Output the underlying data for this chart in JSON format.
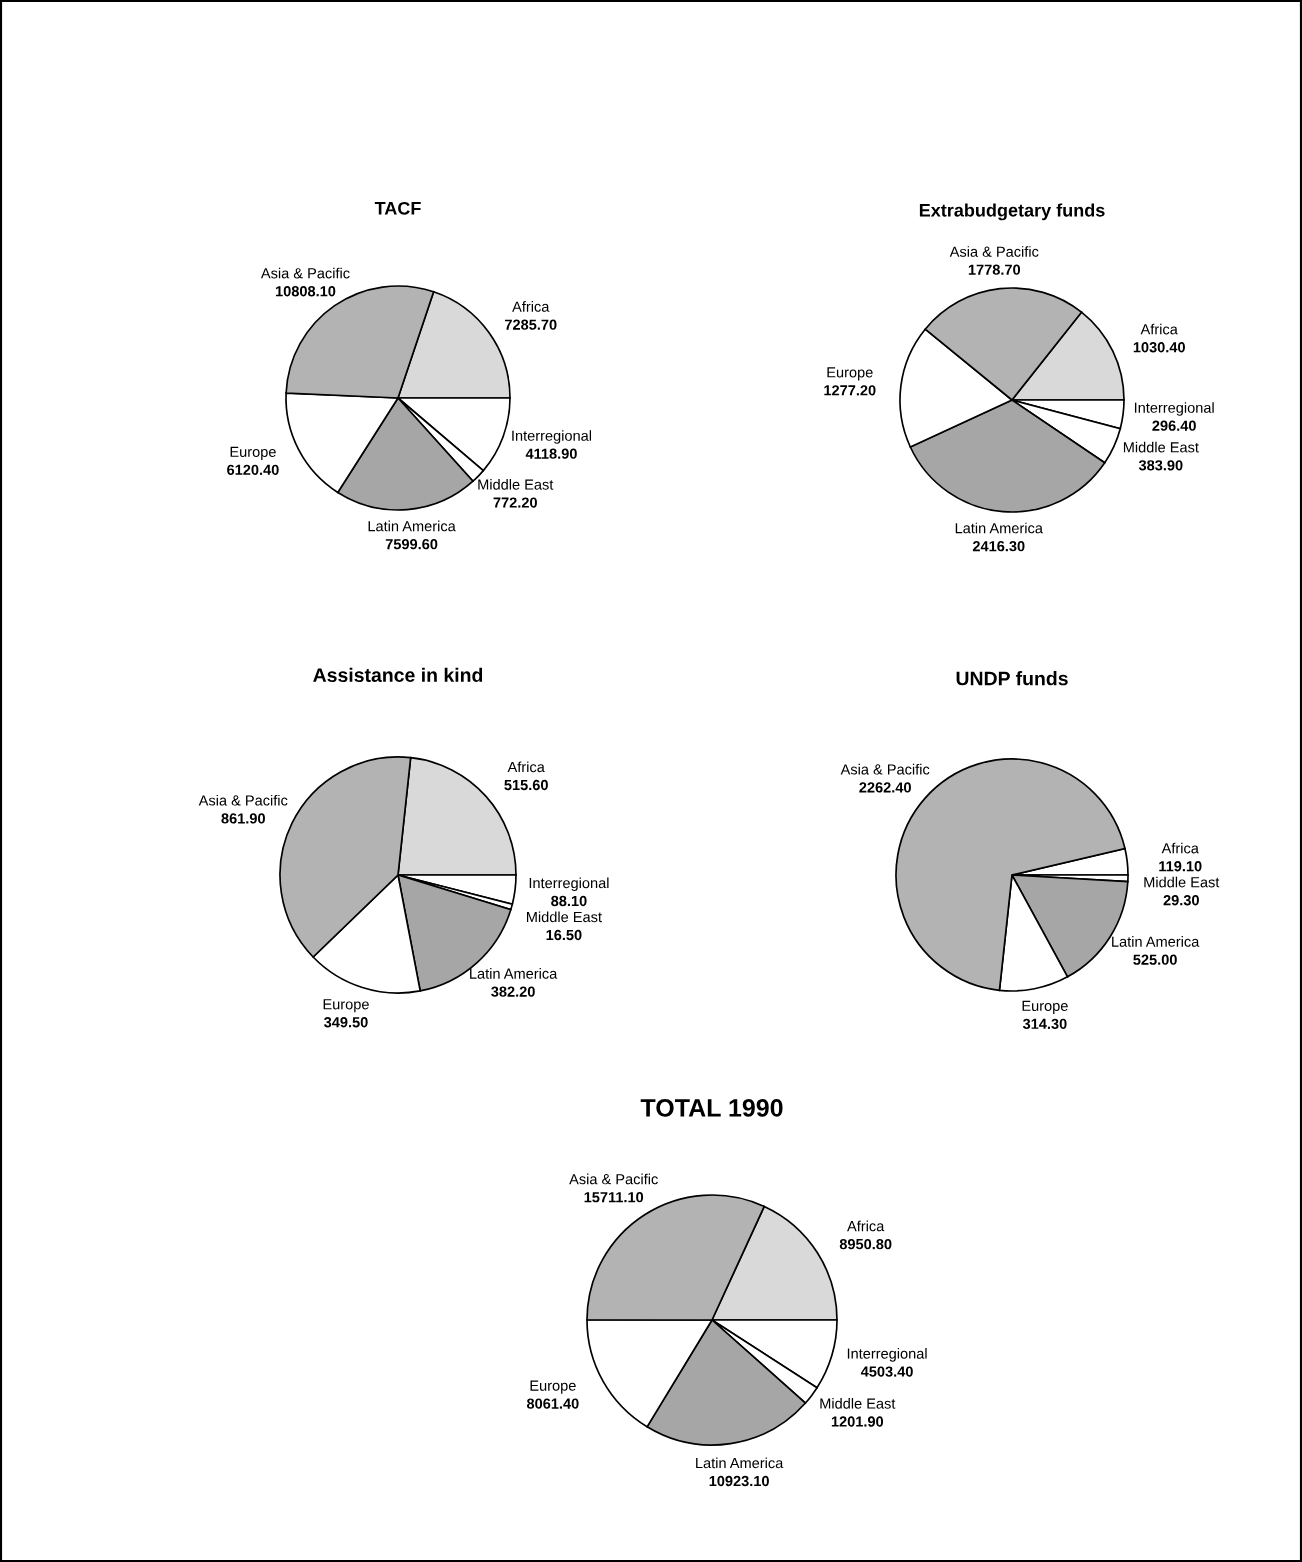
{
  "chart_data": [
    {
      "type": "pie",
      "title": "TACF",
      "categories": [
        "Africa",
        "Interregional",
        "Middle East",
        "Latin America",
        "Europe",
        "Asia & Pacific"
      ],
      "values": [
        7285.7,
        4118.9,
        772.2,
        7599.6,
        6120.4,
        10808.1
      ],
      "value_labels": [
        "7285.70",
        "4118.90",
        "772.20",
        "7599.60",
        "6120.40",
        "10808.10"
      ],
      "colors": [
        "#d9d9d9",
        "#ffffff",
        "#ffffff",
        "#a6a6a6",
        "#ffffff",
        "#b3b3b3"
      ]
    },
    {
      "type": "pie",
      "title": "Extrabudgetary funds",
      "categories": [
        "Africa",
        "Interregional",
        "Middle East",
        "Latin America",
        "Europe",
        "Asia & Pacific"
      ],
      "values": [
        1030.4,
        296.4,
        383.9,
        2416.3,
        1277.2,
        1778.7
      ],
      "value_labels": [
        "1030.40",
        "296.40",
        "383.90",
        "2416.30",
        "1277.20",
        "1778.70"
      ],
      "colors": [
        "#d9d9d9",
        "#ffffff",
        "#ffffff",
        "#a6a6a6",
        "#ffffff",
        "#b3b3b3"
      ]
    },
    {
      "type": "pie",
      "title": "Assistance in kind",
      "categories": [
        "Africa",
        "Interregional",
        "Middle East",
        "Latin America",
        "Europe",
        "Asia & Pacific"
      ],
      "values": [
        515.6,
        88.1,
        16.5,
        382.2,
        349.5,
        861.9
      ],
      "value_labels": [
        "515.60",
        "88.10",
        "16.50",
        "382.20",
        "349.50",
        "861.90"
      ],
      "colors": [
        "#d9d9d9",
        "#ffffff",
        "#ffffff",
        "#a6a6a6",
        "#ffffff",
        "#b3b3b3"
      ]
    },
    {
      "type": "pie",
      "title": "UNDP funds",
      "categories": [
        "Africa",
        "Middle East",
        "Latin America",
        "Europe",
        "Asia & Pacific"
      ],
      "values": [
        119.1,
        29.3,
        525.0,
        314.3,
        2262.4
      ],
      "value_labels": [
        "119.10",
        "29.30",
        "525.00",
        "314.30",
        "2262.40"
      ],
      "colors": [
        "#ffffff",
        "#ffffff",
        "#a6a6a6",
        "#ffffff",
        "#b3b3b3"
      ]
    },
    {
      "type": "pie",
      "title": "TOTAL 1990",
      "categories": [
        "Africa",
        "Interregional",
        "Middle East",
        "Latin America",
        "Europe",
        "Asia & Pacific"
      ],
      "values": [
        8950.8,
        4503.4,
        1201.9,
        10923.1,
        8061.4,
        15711.1
      ],
      "value_labels": [
        "8950.80",
        "4503.40",
        "1201.90",
        "10923.10",
        "8061.40",
        "15711.10"
      ],
      "colors": [
        "#d9d9d9",
        "#ffffff",
        "#ffffff",
        "#a6a6a6",
        "#ffffff",
        "#b3b3b3"
      ]
    }
  ]
}
